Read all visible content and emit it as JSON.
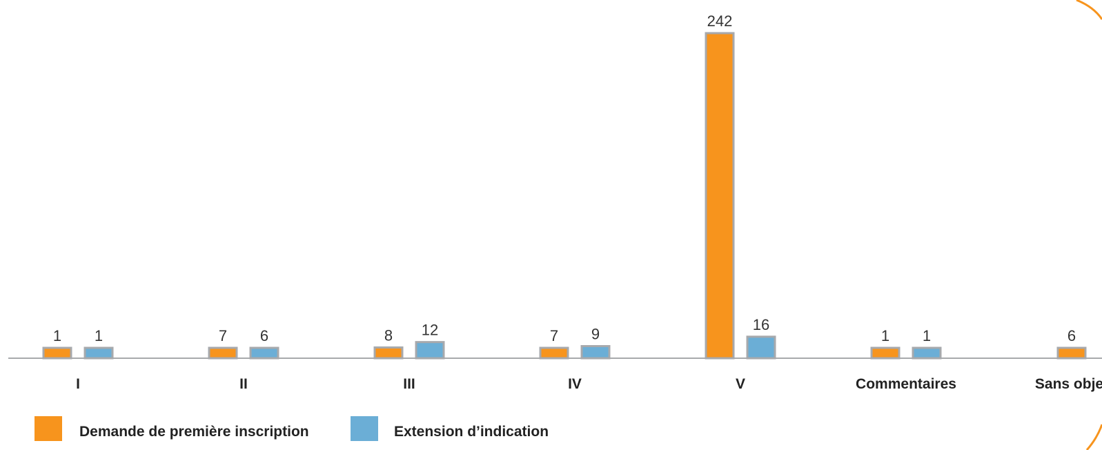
{
  "chart_data": {
    "type": "bar",
    "categories": [
      "I",
      "II",
      "III",
      "IV",
      "V",
      "Commentaires",
      "Sans objet"
    ],
    "series": [
      {
        "name": "Demande de première inscription",
        "color": "#F7941D",
        "values": [
          1,
          7,
          8,
          7,
          242,
          1,
          6
        ]
      },
      {
        "name": "Extension d’indication",
        "color": "#6BAED6",
        "values": [
          1,
          6,
          12,
          9,
          16,
          1,
          null
        ]
      }
    ],
    "ylim": [
      0,
      242
    ],
    "grid": false,
    "legend_position": "bottom-left",
    "bar_outline_color": "#A7A9AC",
    "decoration_color": "#F7941D"
  }
}
